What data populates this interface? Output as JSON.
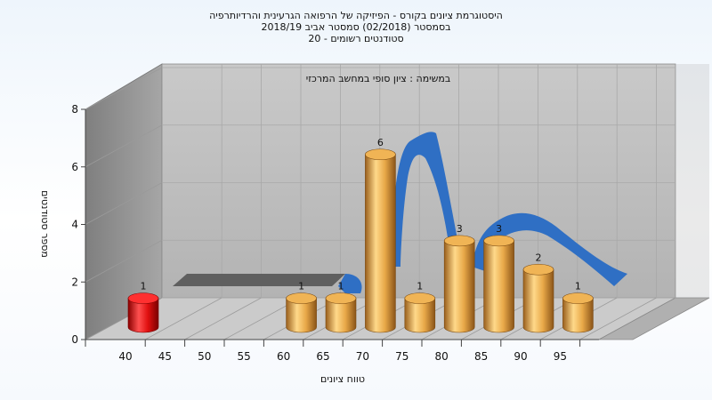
{
  "chart_data": {
    "type": "bar",
    "title_lines": [
      "היסטוגרמת ציונים בקורס - הפיזיקה של הרפואה הגרעינית והרדיותרפיה",
      "בסמסטר  (02/2018)  סמסטר אביב 2018/19",
      "סטודנטים רשומים - 20"
    ],
    "annotation": "במשימה : ציון סופי במחשב המרכזי",
    "xlabel": "טווח ציונים",
    "ylabel": "מספר סטודנטים",
    "ylim": [
      0,
      8
    ],
    "y_ticks": [
      0,
      2,
      4,
      6,
      8
    ],
    "x_ticks": [
      "40",
      "45",
      "50",
      "55",
      "60",
      "65",
      "70",
      "75",
      "80",
      "85",
      "90",
      "95"
    ],
    "categories": [
      "40",
      "60",
      "65",
      "70",
      "75",
      "80",
      "85",
      "90",
      "95"
    ],
    "values": [
      1,
      1,
      1,
      6,
      1,
      3,
      3,
      2,
      1
    ],
    "bar_colors": [
      "#e01010",
      "#e0a040",
      "#e0a040",
      "#e0a040",
      "#e0a040",
      "#e0a040",
      "#e0a040",
      "#e0a040",
      "#e0a040"
    ],
    "data_labels": [
      "1",
      "1",
      "1",
      "6",
      "1",
      "3",
      "3",
      "2",
      "1"
    ],
    "grid": true,
    "colors": {
      "failing_bar": "#e01010",
      "passing_bar": "#e0a040",
      "distribution_ribbon": "#2f6fc4",
      "baseline_ribbon": "#5f5f5f",
      "back_wall": "#bdbdbd",
      "side_wall": "#8e8e8e",
      "floor": "#c8c8c8"
    }
  }
}
